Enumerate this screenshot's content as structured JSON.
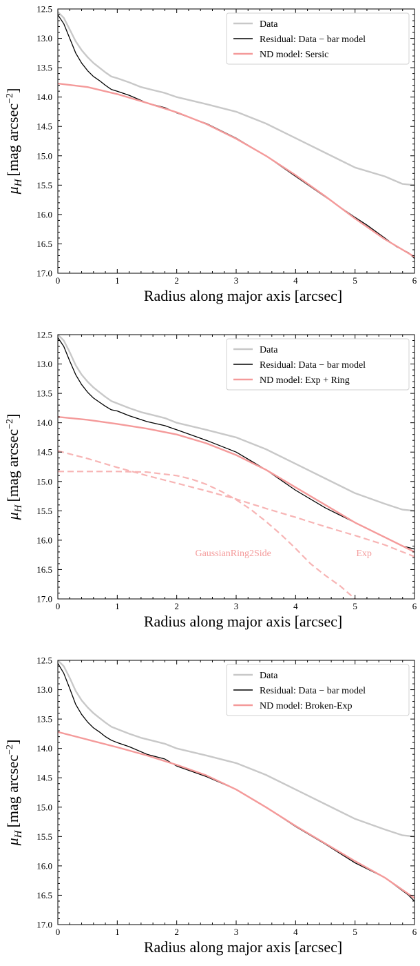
{
  "chart_data": [
    {
      "type": "line",
      "xlabel": "Radius along major axis [arcsec]",
      "ylabel": "μH [mag arcsec−2]",
      "xlim": [
        0,
        6
      ],
      "ylim": [
        12.5,
        17.0
      ],
      "y_inverted": true,
      "xticks": [
        "0",
        "1",
        "2",
        "3",
        "4",
        "5",
        "6"
      ],
      "yticks": [
        "12.5",
        "13.0",
        "13.5",
        "14.0",
        "14.5",
        "15.0",
        "15.5",
        "16.0",
        "16.5",
        "17.0"
      ],
      "legend_position": "top-right",
      "series": [
        {
          "name": "Data",
          "color": "#c8c8c8",
          "style": "solid",
          "x": [
            0,
            0.1,
            0.2,
            0.3,
            0.4,
            0.5,
            0.6,
            0.7,
            0.8,
            0.9,
            1.0,
            1.2,
            1.4,
            1.6,
            1.8,
            2.0,
            2.5,
            3.0,
            3.5,
            4.0,
            4.5,
            5.0,
            5.5,
            5.8,
            6.0
          ],
          "y": [
            12.55,
            12.65,
            12.85,
            13.05,
            13.2,
            13.32,
            13.42,
            13.5,
            13.58,
            13.65,
            13.68,
            13.75,
            13.83,
            13.88,
            13.93,
            14.0,
            14.12,
            14.25,
            14.45,
            14.7,
            14.95,
            15.2,
            15.35,
            15.48,
            15.5
          ]
        },
        {
          "name": "Residual: Data − bar model",
          "color": "#000000",
          "style": "solid",
          "x": [
            0,
            0.1,
            0.2,
            0.3,
            0.4,
            0.5,
            0.6,
            0.7,
            0.8,
            0.9,
            1.0,
            1.2,
            1.5,
            1.8,
            2.0,
            2.5,
            3.0,
            3.5,
            4.0,
            4.5,
            5.0,
            5.2,
            5.5,
            5.7,
            5.9,
            6.0
          ],
          "y": [
            12.6,
            12.75,
            13.0,
            13.25,
            13.42,
            13.55,
            13.65,
            13.72,
            13.8,
            13.87,
            13.9,
            13.97,
            14.1,
            14.18,
            14.27,
            14.45,
            14.7,
            15.0,
            15.35,
            15.7,
            16.05,
            16.18,
            16.4,
            16.55,
            16.65,
            16.75
          ]
        },
        {
          "name": "ND model: Sersic",
          "color": "#f49a9a",
          "style": "solid",
          "x": [
            0,
            0.5,
            1.0,
            1.5,
            2.0,
            2.5,
            3.0,
            3.5,
            4.0,
            4.5,
            5.0,
            5.5,
            6.0
          ],
          "y": [
            13.77,
            13.83,
            13.95,
            14.1,
            14.26,
            14.46,
            14.71,
            15.0,
            15.33,
            15.69,
            16.07,
            16.42,
            16.72
          ]
        }
      ],
      "annotations": []
    },
    {
      "type": "line",
      "xlabel": "Radius along major axis [arcsec]",
      "ylabel": "μH [mag arcsec−2]",
      "xlim": [
        0,
        6
      ],
      "ylim": [
        12.5,
        17.0
      ],
      "y_inverted": true,
      "xticks": [
        "0",
        "1",
        "2",
        "3",
        "4",
        "5",
        "6"
      ],
      "yticks": [
        "12.5",
        "13.0",
        "13.5",
        "14.0",
        "14.5",
        "15.0",
        "15.5",
        "16.0",
        "16.5",
        "17.0"
      ],
      "legend_position": "top-right",
      "series": [
        {
          "name": "Data",
          "color": "#c8c8c8",
          "style": "solid",
          "x": [
            0,
            0.1,
            0.2,
            0.3,
            0.4,
            0.5,
            0.6,
            0.7,
            0.8,
            0.9,
            1.0,
            1.2,
            1.4,
            1.6,
            1.8,
            2.0,
            2.5,
            3.0,
            3.5,
            4.0,
            4.5,
            5.0,
            5.5,
            5.8,
            6.0
          ],
          "y": [
            12.5,
            12.6,
            12.8,
            13.02,
            13.18,
            13.3,
            13.4,
            13.48,
            13.56,
            13.63,
            13.67,
            13.75,
            13.82,
            13.87,
            13.92,
            14.0,
            14.12,
            14.25,
            14.45,
            14.7,
            14.95,
            15.2,
            15.38,
            15.48,
            15.5
          ]
        },
        {
          "name": "Residual: Data − bar model",
          "color": "#000000",
          "style": "solid",
          "x": [
            0,
            0.1,
            0.2,
            0.3,
            0.4,
            0.5,
            0.6,
            0.7,
            0.8,
            0.9,
            1.0,
            1.2,
            1.5,
            1.8,
            2.0,
            2.5,
            3.0,
            3.5,
            4.0,
            4.5,
            5.0,
            5.5,
            5.8,
            6.0
          ],
          "y": [
            12.55,
            12.7,
            12.95,
            13.18,
            13.35,
            13.48,
            13.58,
            13.65,
            13.72,
            13.78,
            13.8,
            13.88,
            13.98,
            14.05,
            14.12,
            14.3,
            14.5,
            14.8,
            15.15,
            15.45,
            15.7,
            15.95,
            16.1,
            16.15
          ]
        },
        {
          "name": "ND model: Exp + Ring",
          "color": "#f49a9a",
          "style": "solid",
          "x": [
            0,
            0.5,
            1.0,
            1.5,
            2.0,
            2.5,
            3.0,
            3.5,
            4.0,
            4.5,
            5.0,
            5.5,
            6.0
          ],
          "y": [
            13.9,
            13.95,
            14.02,
            14.1,
            14.2,
            14.35,
            14.55,
            14.8,
            15.1,
            15.4,
            15.7,
            15.95,
            16.2
          ]
        },
        {
          "name": "",
          "color": "#f7b4b4",
          "style": "dashed",
          "x": [
            0,
            0.5,
            1.0,
            1.5,
            2.0,
            2.5,
            3.0,
            3.5,
            4.0,
            4.5,
            5.0,
            5.5,
            6.0
          ],
          "y": [
            14.48,
            14.61,
            14.76,
            14.9,
            15.03,
            15.16,
            15.3,
            15.46,
            15.61,
            15.77,
            15.92,
            16.08,
            16.28
          ]
        },
        {
          "name": "",
          "color": "#f7b4b4",
          "style": "dashed",
          "x": [
            0,
            0.5,
            1.0,
            1.5,
            2.0,
            2.25,
            2.5,
            2.75,
            3.0,
            3.25,
            3.5,
            3.75,
            4.0,
            4.25,
            4.5,
            4.75,
            5.0
          ],
          "y": [
            14.83,
            14.83,
            14.83,
            14.84,
            14.9,
            14.96,
            15.05,
            15.17,
            15.31,
            15.48,
            15.68,
            15.9,
            16.14,
            16.4,
            16.6,
            16.78,
            17.0
          ]
        }
      ],
      "annotations": [
        "GaussianRing2Side",
        "Exp"
      ]
    },
    {
      "type": "line",
      "xlabel": "Radius along major axis [arcsec]",
      "ylabel": "μH [mag arcsec−2]",
      "xlim": [
        0,
        6
      ],
      "ylim": [
        12.5,
        17.0
      ],
      "y_inverted": true,
      "xticks": [
        "0",
        "1",
        "2",
        "3",
        "4",
        "5",
        "6"
      ],
      "yticks": [
        "12.5",
        "13.0",
        "13.5",
        "14.0",
        "14.5",
        "15.0",
        "15.5",
        "16.0",
        "16.5",
        "17.0"
      ],
      "legend_position": "top-right",
      "series": [
        {
          "name": "Data",
          "color": "#c8c8c8",
          "style": "solid",
          "x": [
            0,
            0.1,
            0.2,
            0.3,
            0.4,
            0.5,
            0.6,
            0.7,
            0.8,
            0.9,
            1.0,
            1.2,
            1.4,
            1.6,
            1.8,
            2.0,
            2.5,
            3.0,
            3.5,
            4.0,
            4.5,
            5.0,
            5.5,
            5.8,
            6.0
          ],
          "y": [
            12.5,
            12.6,
            12.8,
            13.02,
            13.18,
            13.3,
            13.4,
            13.48,
            13.56,
            13.63,
            13.67,
            13.75,
            13.82,
            13.87,
            13.92,
            14.0,
            14.12,
            14.25,
            14.45,
            14.7,
            14.95,
            15.2,
            15.38,
            15.48,
            15.5
          ]
        },
        {
          "name": "Residual: Data − bar model",
          "color": "#000000",
          "style": "solid",
          "x": [
            0,
            0.1,
            0.2,
            0.3,
            0.4,
            0.5,
            0.6,
            0.7,
            0.8,
            0.9,
            1.0,
            1.2,
            1.5,
            1.8,
            2.0,
            2.5,
            3.0,
            3.5,
            4.0,
            4.5,
            5.0,
            5.2,
            5.5,
            5.7,
            5.9,
            6.0
          ],
          "y": [
            12.55,
            12.72,
            12.98,
            13.25,
            13.42,
            13.55,
            13.65,
            13.72,
            13.8,
            13.86,
            13.9,
            13.97,
            14.1,
            14.18,
            14.3,
            14.48,
            14.7,
            15.0,
            15.33,
            15.63,
            15.95,
            16.05,
            16.2,
            16.35,
            16.5,
            16.6
          ]
        },
        {
          "name": "ND model: Broken-Exp",
          "color": "#f49a9a",
          "style": "solid",
          "x": [
            0,
            0.5,
            1.0,
            1.5,
            2.0,
            2.5,
            3.0,
            3.5,
            4.0,
            4.5,
            5.0,
            5.5,
            6.0
          ],
          "y": [
            13.72,
            13.85,
            13.98,
            14.12,
            14.28,
            14.46,
            14.7,
            15.0,
            15.32,
            15.62,
            15.92,
            16.2,
            16.55
          ]
        }
      ],
      "annotations": []
    }
  ]
}
